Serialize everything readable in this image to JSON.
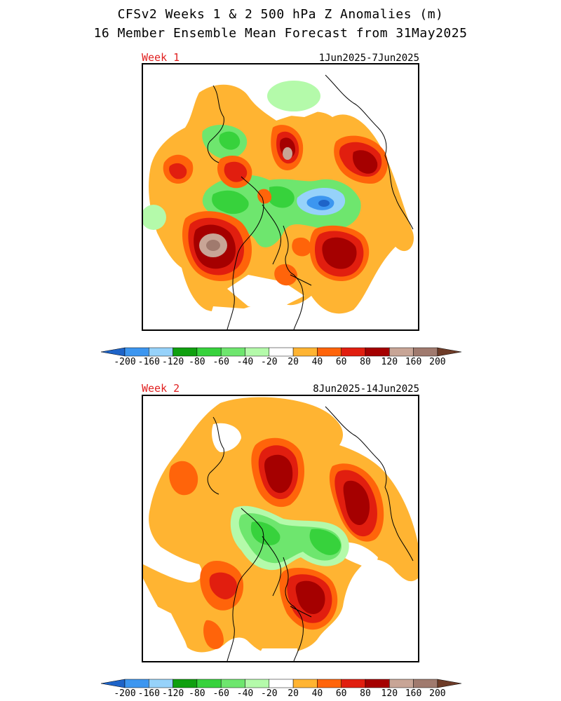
{
  "header": {
    "title_line1": "CFSv2 Weeks 1 & 2 500 hPa Z Anomalies (m)",
    "title_line2": "16 Member Ensemble Mean Forecast from 31May2025"
  },
  "panels": [
    {
      "label": "Week 1",
      "dates": "1Jun2025-7Jun2025"
    },
    {
      "label": "Week 2",
      "dates": "8Jun2025-14Jun2025"
    }
  ],
  "colorbar": {
    "labels": [
      "-200",
      "-160",
      "-120",
      "-80",
      "-60",
      "-40",
      "-20",
      "20",
      "40",
      "60",
      "80",
      "120",
      "160",
      "200"
    ],
    "colors": [
      "#1e64c8",
      "#3c96f0",
      "#96d2fa",
      "#0fa00f",
      "#37d23c",
      "#6ee66e",
      "#b4faaa",
      "#ffffff",
      "#ffb432",
      "#ff640a",
      "#e11e0f",
      "#a50000",
      "#c8a596",
      "#a07a6e",
      "#6e3c28"
    ]
  }
}
